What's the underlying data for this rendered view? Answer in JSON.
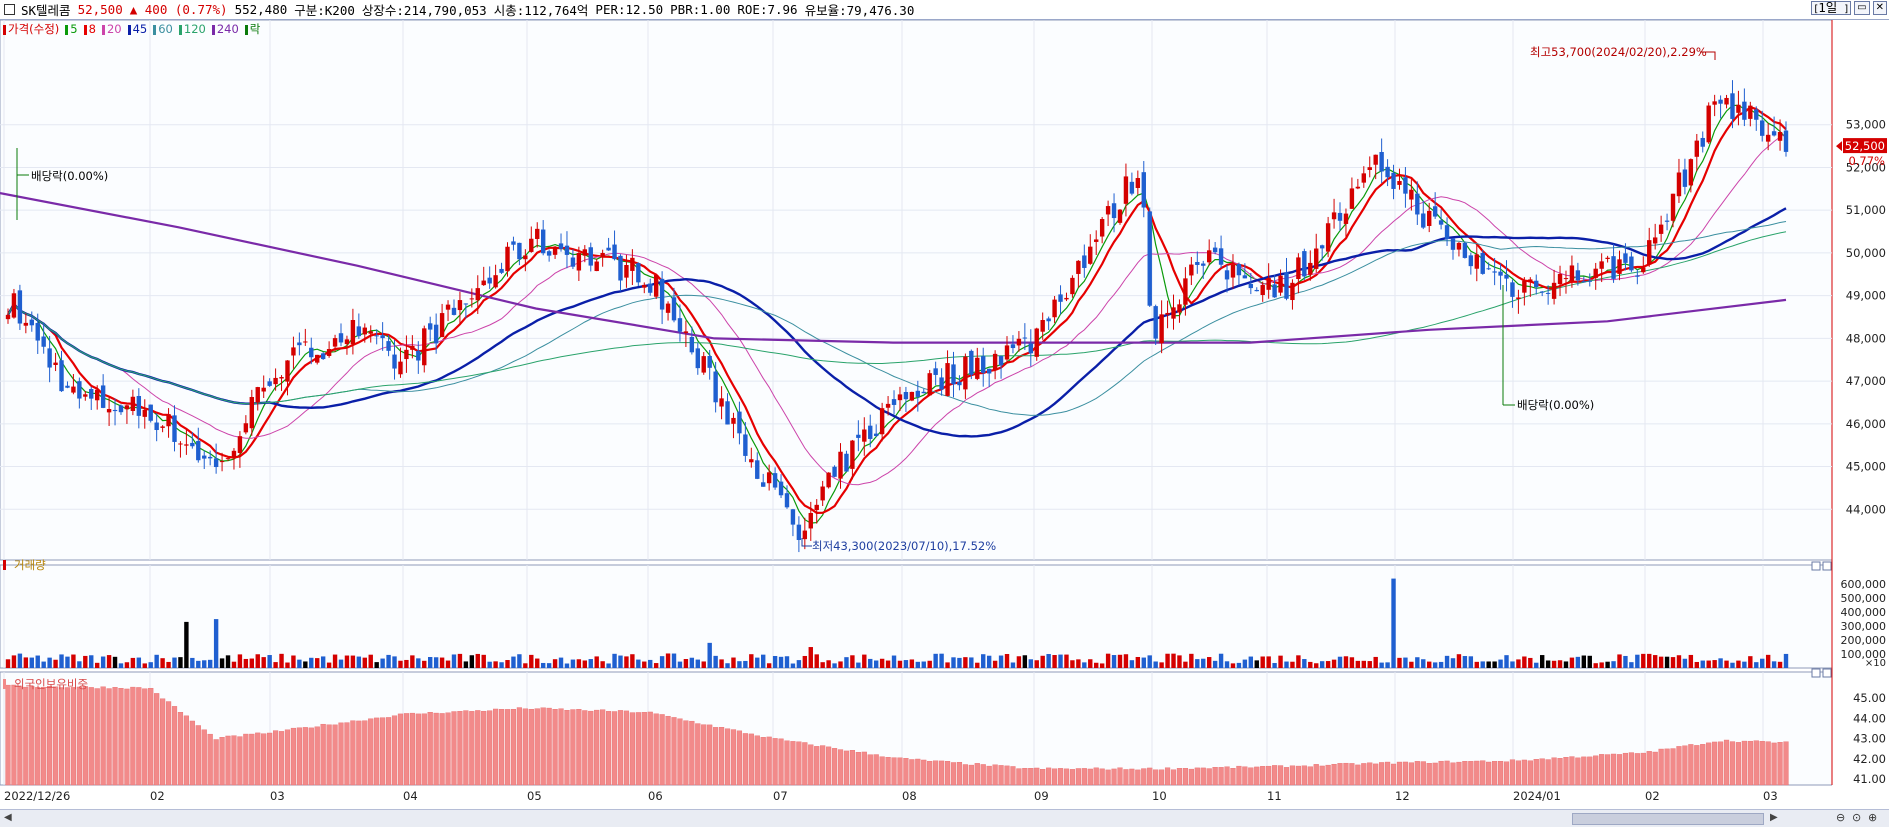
{
  "header": {
    "name": "SK텔레콤",
    "price": "52,500",
    "change": "▲ 400 (0.77%)",
    "volume": "552,480",
    "segment": "구분:K200",
    "shares": "상장수:214,790,053",
    "market_cap": "시총:112,764억",
    "per": "PER:12.50",
    "pbr": "PBR:1.00",
    "roe": "ROE:7.96",
    "float": "유보율:79,476.30",
    "period": "1일",
    "colors": {
      "up": "#d40000",
      "down": "#1f5fd0"
    }
  },
  "legend_price": [
    {
      "label": "가격(수정)",
      "color": "#d40000"
    },
    {
      "label": "5",
      "color": "#0a9a0a"
    },
    {
      "label": "8",
      "color": "#e60000"
    },
    {
      "label": "20",
      "color": "#cc44aa"
    },
    {
      "label": "45",
      "color": "#0a1fa8"
    },
    {
      "label": "60",
      "color": "#3b8fa0"
    },
    {
      "label": "120",
      "color": "#2aa36b"
    },
    {
      "label": "240",
      "color": "#7a2aa8"
    },
    {
      "label": "락",
      "color": "#0a7a0a"
    }
  ],
  "legend_volume": "거래량",
  "legend_foreign": "외국인보유비중",
  "annotations": {
    "high": "최고53,700(2024/02/20),2.29%",
    "low": "최저43,300(2023/07/10),17.52%",
    "dividend1": "배당락(0.00%)",
    "dividend2": "배당락(0.00%)",
    "last_price_tag": "52,500",
    "last_change_tag": "0.77%",
    "volume_unit": "×10"
  },
  "chart_data": [
    {
      "type": "line",
      "title": "SK텔레콤",
      "axis": "price",
      "ylim": [
        43300,
        53700
      ],
      "y_ticks": [
        "53,000",
        "52,000",
        "51,000",
        "50,000",
        "49,000",
        "48,000",
        "47,000",
        "46,000",
        "45,000",
        "44,000"
      ],
      "y_tick_values": [
        53000,
        52000,
        51000,
        50000,
        49000,
        48000,
        47000,
        46000,
        45000,
        44000
      ],
      "x_ticks": [
        "2022/12/26",
        "02",
        "03",
        "04",
        "05",
        "06",
        "07",
        "08",
        "09",
        "10",
        "11",
        "12",
        "2024/01",
        "02",
        "03"
      ],
      "approx_close_by_month": [
        {
          "x": "2022/12/26",
          "close": 48900
        },
        {
          "x": "01",
          "close": 46600
        },
        {
          "x": "02",
          "close": 46300
        },
        {
          "x": "02 mid",
          "close": 44900
        },
        {
          "x": "03",
          "close": 47200
        },
        {
          "x": "04",
          "close": 48200
        },
        {
          "x": "04 end",
          "close": 47400
        },
        {
          "x": "05",
          "close": 50300
        },
        {
          "x": "06",
          "close": 49500
        },
        {
          "x": "06 end",
          "close": 47000
        },
        {
          "x": "07",
          "close": 43300
        },
        {
          "x": "07 end",
          "close": 45000
        },
        {
          "x": "08",
          "close": 46700
        },
        {
          "x": "09",
          "close": 47900
        },
        {
          "x": "09 end",
          "close": 52000
        },
        {
          "x": "10",
          "close": 48200
        },
        {
          "x": "10 end",
          "close": 49800
        },
        {
          "x": "11",
          "close": 49200
        },
        {
          "x": "11 end",
          "close": 52100
        },
        {
          "x": "12",
          "close": 50200
        },
        {
          "x": "2024/01",
          "close": 49200
        },
        {
          "x": "02",
          "close": 49800
        },
        {
          "x": "02/20",
          "close": 53700
        },
        {
          "x": "03",
          "close": 52500
        }
      ],
      "series": [
        {
          "name": "5",
          "color": "#0a9a0a"
        },
        {
          "name": "8",
          "color": "#e60000"
        },
        {
          "name": "20",
          "color": "#cc44aa"
        },
        {
          "name": "45",
          "color": "#0a1fa8"
        },
        {
          "name": "60",
          "color": "#3b8fa0"
        },
        {
          "name": "120",
          "color": "#2aa36b"
        },
        {
          "name": "240",
          "color": "#7a2aa8",
          "values": [
            51400,
            50600,
            49700,
            48700,
            48000,
            47900,
            47900,
            47900,
            48200,
            48400,
            48900
          ]
        }
      ]
    },
    {
      "type": "bar",
      "title": "거래량",
      "axis": "volume",
      "y_ticks": [
        "600,000",
        "500,000",
        "400,000",
        "300,000",
        "200,000",
        "100,000"
      ],
      "y_tick_values": [
        600000,
        500000,
        400000,
        300000,
        200000,
        100000
      ],
      "spikes": [
        {
          "x": "02 mid",
          "value": 330000
        },
        {
          "x": "02 end",
          "value": 350000
        },
        {
          "x": "06",
          "value": 180000
        },
        {
          "x": "07",
          "value": 150000
        },
        {
          "x": "11 end",
          "value": 640000
        }
      ],
      "typical_value": 80000
    },
    {
      "type": "bar",
      "title": "외국인보유비중",
      "axis": "foreign_ratio",
      "y_ticks": [
        "45.00",
        "44.00",
        "43.00",
        "42.00",
        "41.00"
      ],
      "y_tick_values": [
        45,
        44,
        43,
        42,
        41
      ],
      "values_by_period": [
        {
          "x": "2022/12/26",
          "value": 45.6
        },
        {
          "x": "02",
          "value": 45.5
        },
        {
          "x": "02 mid",
          "value": 43.0
        },
        {
          "x": "03",
          "value": 43.3
        },
        {
          "x": "04",
          "value": 44.2
        },
        {
          "x": "05",
          "value": 44.5
        },
        {
          "x": "06",
          "value": 44.3
        },
        {
          "x": "07",
          "value": 43.0
        },
        {
          "x": "08",
          "value": 42.0
        },
        {
          "x": "09",
          "value": 41.5
        },
        {
          "x": "10",
          "value": 41.5
        },
        {
          "x": "11",
          "value": 41.6
        },
        {
          "x": "12",
          "value": 41.8
        },
        {
          "x": "2024/01",
          "value": 41.9
        },
        {
          "x": "02",
          "value": 42.3
        },
        {
          "x": "02/20",
          "value": 42.9
        },
        {
          "x": "03",
          "value": 42.8
        }
      ]
    }
  ]
}
